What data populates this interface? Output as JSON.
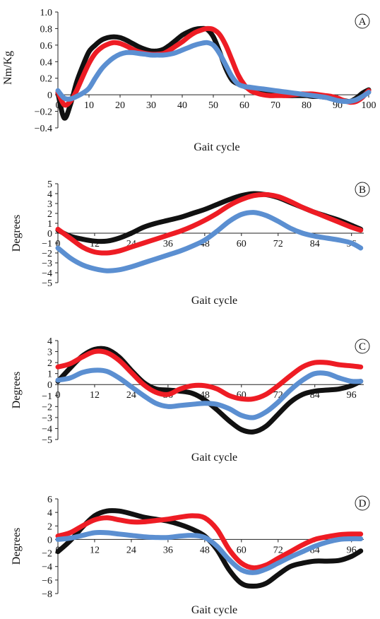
{
  "colors": {
    "black": "#111111",
    "red": "#ee1c24",
    "blue": "#5b8fd1"
  },
  "chart_data": [
    {
      "type": "line",
      "panel_label": "A",
      "xlabel": "Gait cycle",
      "ylabel": "Nm/Kg",
      "xlim": [
        0,
        100
      ],
      "ylim": [
        -0.4,
        1.0
      ],
      "xticks": [
        "0",
        "10",
        "20",
        "30",
        "40",
        "50",
        "60",
        "70",
        "80",
        "90",
        "100"
      ],
      "yticks": [
        "1.0",
        "0.8",
        "0.6",
        "0.4",
        "0.2",
        "0",
        "−0.2",
        "−0.4"
      ],
      "x": [
        0,
        2,
        4,
        6,
        8,
        10,
        12,
        14,
        16,
        18,
        20,
        22,
        24,
        26,
        28,
        30,
        32,
        34,
        36,
        38,
        40,
        42,
        44,
        46,
        48,
        50,
        52,
        54,
        56,
        58,
        60,
        62,
        64,
        66,
        68,
        70,
        72,
        74,
        76,
        78,
        80,
        82,
        84,
        86,
        88,
        90,
        92,
        94,
        96,
        98,
        100
      ],
      "series": [
        {
          "color": "black",
          "values": [
            0.02,
            -0.28,
            -0.12,
            0.15,
            0.35,
            0.52,
            0.6,
            0.66,
            0.69,
            0.7,
            0.69,
            0.66,
            0.62,
            0.58,
            0.55,
            0.53,
            0.53,
            0.55,
            0.6,
            0.66,
            0.72,
            0.76,
            0.79,
            0.8,
            0.79,
            0.7,
            0.52,
            0.32,
            0.18,
            0.13,
            0.1,
            0.07,
            0.05,
            0.03,
            0.02,
            0.01,
            0.0,
            -0.01,
            -0.01,
            -0.01,
            -0.01,
            -0.02,
            -0.02,
            -0.03,
            -0.04,
            -0.05,
            -0.07,
            -0.08,
            -0.04,
            0.02,
            0.06
          ]
        },
        {
          "color": "red",
          "values": [
            0.03,
            -0.12,
            -0.08,
            0.05,
            0.22,
            0.38,
            0.5,
            0.57,
            0.61,
            0.63,
            0.62,
            0.59,
            0.55,
            0.52,
            0.5,
            0.49,
            0.49,
            0.5,
            0.54,
            0.59,
            0.64,
            0.7,
            0.75,
            0.78,
            0.8,
            0.79,
            0.73,
            0.6,
            0.42,
            0.24,
            0.12,
            0.05,
            0.02,
            0.0,
            -0.01,
            -0.01,
            -0.01,
            -0.01,
            0.0,
            0.01,
            0.01,
            0.01,
            0.0,
            -0.01,
            -0.02,
            -0.04,
            -0.07,
            -0.09,
            -0.08,
            -0.03,
            0.05
          ]
        },
        {
          "color": "blue",
          "values": [
            0.05,
            -0.04,
            -0.05,
            -0.02,
            0.02,
            0.08,
            0.2,
            0.31,
            0.39,
            0.45,
            0.49,
            0.51,
            0.51,
            0.5,
            0.49,
            0.48,
            0.48,
            0.48,
            0.49,
            0.51,
            0.54,
            0.57,
            0.6,
            0.62,
            0.63,
            0.6,
            0.5,
            0.36,
            0.22,
            0.13,
            0.1,
            0.09,
            0.08,
            0.07,
            0.06,
            0.05,
            0.04,
            0.03,
            0.02,
            0.01,
            0.0,
            -0.01,
            -0.02,
            -0.03,
            -0.05,
            -0.07,
            -0.08,
            -0.08,
            -0.06,
            -0.02,
            0.03
          ]
        }
      ]
    },
    {
      "type": "line",
      "panel_label": "B",
      "xlabel": "Gait cycle",
      "ylabel": "Degrees",
      "xlim": [
        0,
        100
      ],
      "ylim": [
        -5,
        5
      ],
      "xticks": [
        "0",
        "12",
        "24",
        "36",
        "48",
        "60",
        "72",
        "84",
        "96"
      ],
      "yticks": [
        "5",
        "4",
        "3",
        "2",
        "1",
        "0",
        "−1",
        "−2",
        "−3",
        "−4",
        "−5"
      ],
      "x": [
        0,
        4,
        8,
        12,
        16,
        20,
        24,
        28,
        32,
        36,
        40,
        44,
        48,
        52,
        56,
        60,
        64,
        68,
        72,
        76,
        80,
        84,
        88,
        92,
        96,
        99
      ],
      "series": [
        {
          "color": "black",
          "values": [
            0.3,
            -0.3,
            -0.6,
            -0.8,
            -0.8,
            -0.5,
            0.0,
            0.6,
            1.0,
            1.3,
            1.6,
            2.0,
            2.4,
            2.9,
            3.4,
            3.8,
            4.0,
            3.9,
            3.6,
            3.1,
            2.6,
            2.1,
            1.7,
            1.3,
            0.8,
            0.4
          ]
        },
        {
          "color": "red",
          "values": [
            0.4,
            -0.5,
            -1.4,
            -1.9,
            -2.0,
            -1.8,
            -1.4,
            -1.0,
            -0.6,
            -0.2,
            0.2,
            0.7,
            1.3,
            2.0,
            2.8,
            3.4,
            3.8,
            3.9,
            3.7,
            3.2,
            2.6,
            2.1,
            1.6,
            1.1,
            0.6,
            0.3
          ]
        },
        {
          "color": "blue",
          "values": [
            -1.5,
            -2.5,
            -3.2,
            -3.6,
            -3.8,
            -3.7,
            -3.4,
            -3.0,
            -2.6,
            -2.2,
            -1.8,
            -1.3,
            -0.7,
            0.2,
            1.2,
            1.9,
            2.1,
            1.8,
            1.2,
            0.5,
            0.0,
            -0.3,
            -0.5,
            -0.7,
            -1.0,
            -1.5
          ]
        }
      ]
    },
    {
      "type": "line",
      "panel_label": "C",
      "xlabel": "Gait cycle",
      "ylabel": "Degrees",
      "xlim": [
        0,
        100
      ],
      "ylim": [
        -5,
        4
      ],
      "xticks": [
        "0",
        "12",
        "24",
        "36",
        "48",
        "60",
        "72",
        "84",
        "96"
      ],
      "yticks": [
        "4",
        "3",
        "2",
        "1",
        "0",
        "−1",
        "−2",
        "−3",
        "−4",
        "−5"
      ],
      "x": [
        0,
        4,
        8,
        12,
        16,
        20,
        24,
        28,
        32,
        36,
        40,
        44,
        48,
        52,
        56,
        60,
        64,
        68,
        72,
        76,
        80,
        84,
        88,
        92,
        96,
        99
      ],
      "series": [
        {
          "color": "black",
          "values": [
            0.3,
            1.5,
            2.6,
            3.2,
            3.2,
            2.5,
            1.3,
            0.2,
            -0.4,
            -0.5,
            -0.6,
            -0.8,
            -1.4,
            -2.3,
            -3.3,
            -4.1,
            -4.3,
            -3.8,
            -2.7,
            -1.6,
            -0.9,
            -0.6,
            -0.5,
            -0.4,
            -0.1,
            0.3
          ]
        },
        {
          "color": "red",
          "values": [
            1.6,
            1.9,
            2.5,
            3.0,
            2.9,
            2.2,
            1.1,
            0.0,
            -0.7,
            -0.9,
            -0.4,
            -0.1,
            -0.1,
            -0.4,
            -1.0,
            -1.3,
            -1.3,
            -0.9,
            -0.1,
            0.8,
            1.6,
            2.0,
            2.0,
            1.8,
            1.7,
            1.6
          ]
        },
        {
          "color": "blue",
          "values": [
            0.4,
            0.6,
            1.1,
            1.3,
            1.2,
            0.6,
            -0.2,
            -1.0,
            -1.7,
            -2.0,
            -1.9,
            -1.8,
            -1.7,
            -1.8,
            -2.2,
            -2.8,
            -3.0,
            -2.5,
            -1.6,
            -0.5,
            0.4,
            1.0,
            1.0,
            0.6,
            0.3,
            0.3
          ]
        }
      ]
    },
    {
      "type": "line",
      "panel_label": "D",
      "xlabel": "Gait cycle",
      "ylabel": "Degrees",
      "xlim": [
        0,
        100
      ],
      "ylim": [
        -8,
        6
      ],
      "xticks": [
        "0",
        "12",
        "24",
        "36",
        "48",
        "60",
        "72",
        "84",
        "96"
      ],
      "yticks": [
        "6",
        "4",
        "2",
        "0",
        "−2",
        "−4",
        "−6",
        "−8"
      ],
      "x": [
        0,
        4,
        8,
        12,
        16,
        20,
        24,
        28,
        32,
        36,
        40,
        44,
        48,
        52,
        56,
        60,
        64,
        68,
        72,
        76,
        80,
        84,
        88,
        92,
        96,
        99
      ],
      "series": [
        {
          "color": "black",
          "values": [
            -1.8,
            -0.2,
            1.8,
            3.5,
            4.2,
            4.2,
            3.8,
            3.3,
            3.0,
            2.7,
            2.2,
            1.5,
            0.5,
            -1.5,
            -4.5,
            -6.5,
            -6.9,
            -6.5,
            -5.2,
            -4.0,
            -3.5,
            -3.2,
            -3.2,
            -3.1,
            -2.5,
            -1.7
          ]
        },
        {
          "color": "red",
          "values": [
            0.5,
            1.0,
            2.0,
            2.9,
            3.2,
            2.9,
            2.6,
            2.6,
            2.8,
            3.0,
            3.3,
            3.5,
            3.2,
            1.5,
            -1.5,
            -3.5,
            -4.2,
            -3.8,
            -2.8,
            -1.8,
            -0.8,
            0.0,
            0.4,
            0.7,
            0.8,
            0.8
          ]
        },
        {
          "color": "blue",
          "values": [
            0.0,
            0.2,
            0.6,
            1.0,
            1.0,
            0.8,
            0.6,
            0.4,
            0.3,
            0.3,
            0.5,
            0.6,
            0.3,
            -1.0,
            -3.0,
            -4.5,
            -4.9,
            -4.4,
            -3.5,
            -2.6,
            -1.8,
            -1.0,
            -0.4,
            0.0,
            0.1,
            0.1
          ]
        }
      ]
    }
  ]
}
